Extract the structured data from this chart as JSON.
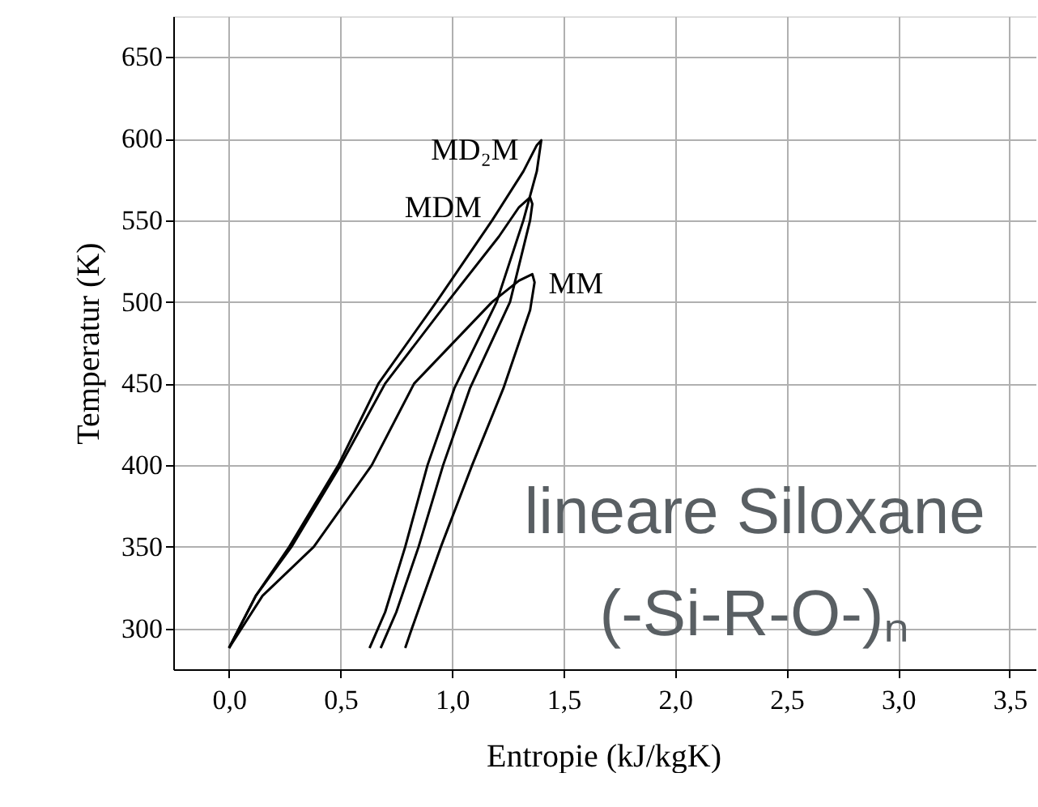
{
  "chart_data": {
    "type": "line",
    "xlabel": "Entropie (kJ/kgK)",
    "ylabel": "Temperatur (K)",
    "xlim": [
      -0.25,
      3.62
    ],
    "ylim": [
      275,
      675
    ],
    "xticks": [
      {
        "value": 0,
        "label": "0,0"
      },
      {
        "value": 0.5,
        "label": "0,5"
      },
      {
        "value": 1,
        "label": "1,0"
      },
      {
        "value": 1.5,
        "label": "1,5"
      },
      {
        "value": 2,
        "label": "2,0"
      },
      {
        "value": 2.5,
        "label": "2,5"
      },
      {
        "value": 3,
        "label": "3,0"
      },
      {
        "value": 3.5,
        "label": "3,5"
      }
    ],
    "yticks": [
      300,
      350,
      400,
      450,
      500,
      550,
      600,
      650
    ],
    "grid": true,
    "marker": "none",
    "line_style": "solid",
    "legend": false,
    "series": [
      {
        "name": "MD₂M",
        "color": "#000000",
        "x": [
          0,
          0.12,
          0.27,
          0.49,
          0.67,
          0.93,
          1.18,
          1.32,
          1.38,
          1.4,
          1.38,
          1.32,
          1.2,
          1.01,
          0.89,
          0.79,
          0.7,
          0.63
        ],
        "values": [
          288,
          320,
          350,
          400,
          450,
          500,
          550,
          580,
          596,
          599,
          580,
          550,
          500,
          447,
          400,
          350,
          310,
          288
        ]
      },
      {
        "name": "MDM",
        "color": "#000000",
        "x": [
          0,
          0.12,
          0.28,
          0.5,
          0.7,
          0.98,
          1.21,
          1.3,
          1.35,
          1.36,
          1.35,
          1.26,
          1.08,
          0.96,
          0.85,
          0.75,
          0.68
        ],
        "values": [
          288,
          320,
          350,
          400,
          450,
          500,
          540,
          558,
          564,
          560,
          550,
          500,
          447,
          400,
          350,
          310,
          288
        ]
      },
      {
        "name": "MM",
        "color": "#000000",
        "x": [
          0,
          0.15,
          0.38,
          0.64,
          0.83,
          1.18,
          1.3,
          1.36,
          1.37,
          1.35,
          1.3,
          1.23,
          1.09,
          0.95,
          0.82,
          0.79
        ],
        "values": [
          288,
          320,
          350,
          400,
          450,
          500,
          513,
          517,
          512,
          495,
          475,
          447,
          400,
          350,
          300,
          288
        ]
      }
    ],
    "annotations": [
      "lineare Siloxane",
      "(-Si-R-O-)ₙ"
    ]
  }
}
